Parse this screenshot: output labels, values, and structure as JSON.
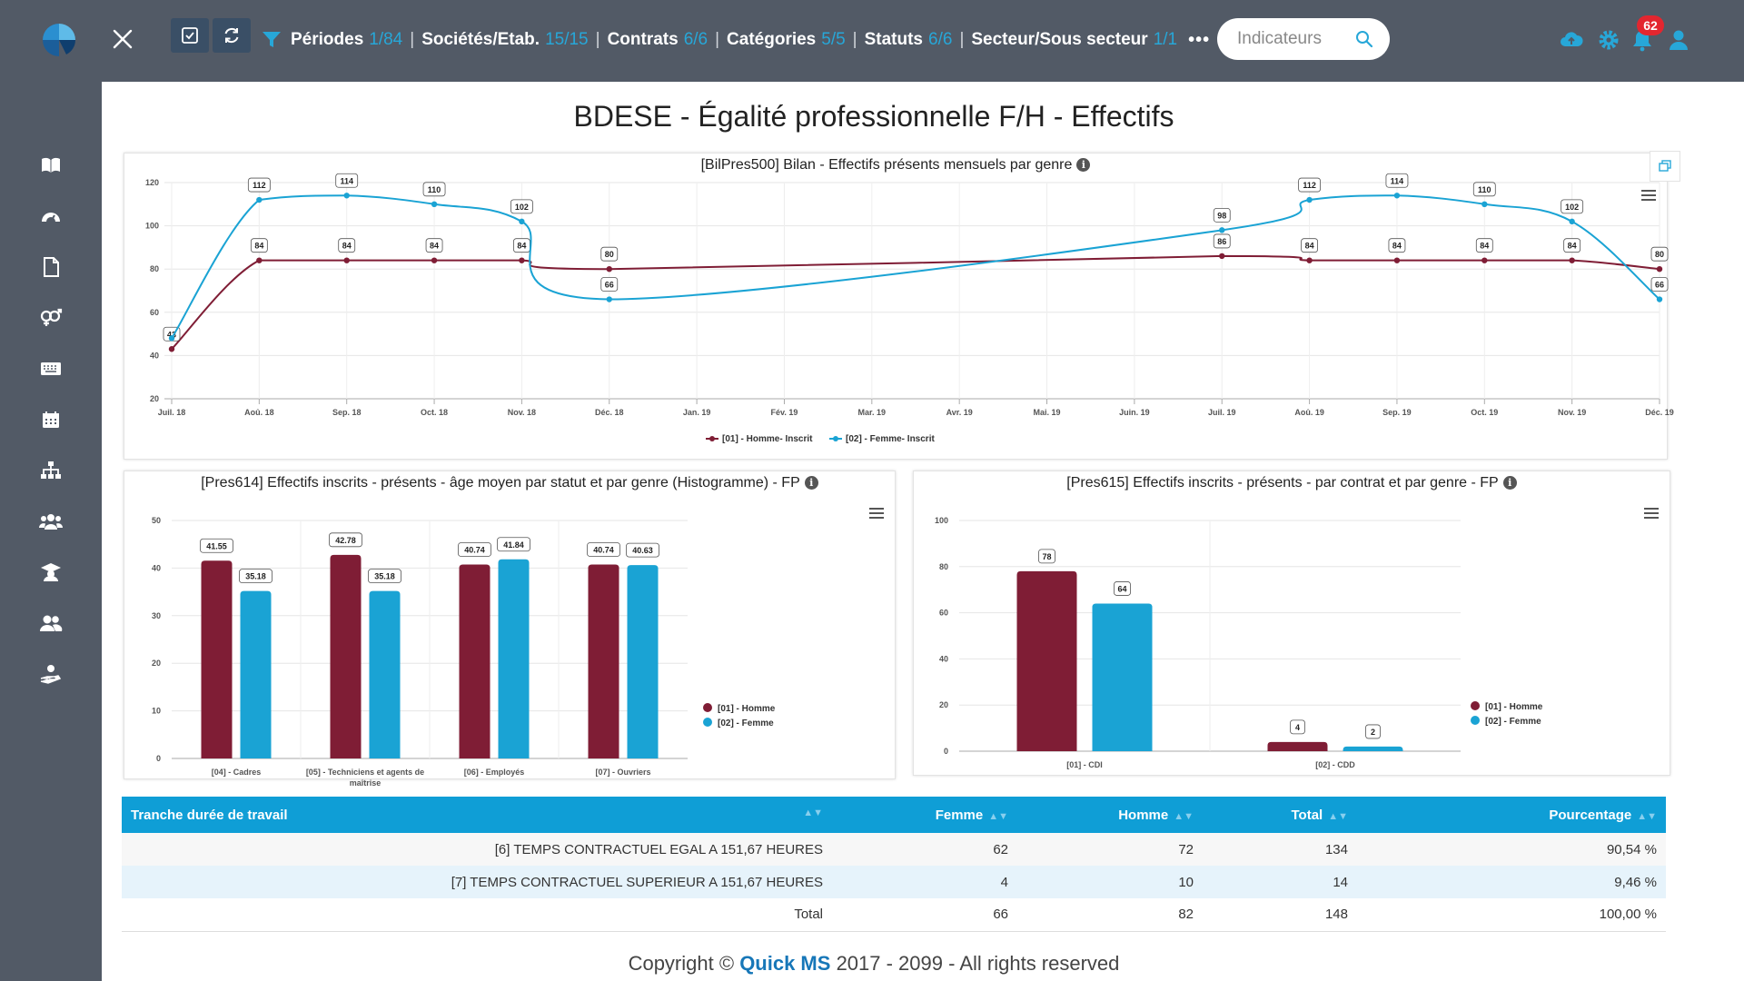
{
  "header": {
    "filters": [
      {
        "label": "Périodes",
        "count": "1/84"
      },
      {
        "label": "Sociétés/Etab.",
        "count": "15/15"
      },
      {
        "label": "Contrats",
        "count": "6/6"
      },
      {
        "label": "Catégories",
        "count": "5/5"
      },
      {
        "label": "Statuts",
        "count": "6/6"
      },
      {
        "label": "Secteur/Sous secteur",
        "count": "1/1"
      }
    ],
    "more_label": "•••",
    "search_placeholder": "Indicateurs",
    "notification_count": "62",
    "icons": {
      "logo": "quickms-logo-icon",
      "close": "close-icon",
      "check": "check-square-icon",
      "refresh": "refresh-icon",
      "filter": "filter-icon",
      "search": "search-icon",
      "cloud": "cloud-upload-icon",
      "settings": "gear-icon",
      "bell": "bell-icon",
      "user": "user-icon"
    },
    "colors": {
      "bar": "#525a66",
      "accent": "#27a7d8",
      "badge": "#e3262f"
    }
  },
  "sidebar": {
    "items": [
      {
        "icon": "book-icon"
      },
      {
        "icon": "dashboard-gauge-icon"
      },
      {
        "icon": "document-icon"
      },
      {
        "icon": "gender-icon"
      },
      {
        "icon": "keyboard-icon"
      },
      {
        "icon": "calendar-icon"
      },
      {
        "icon": "org-chart-icon"
      },
      {
        "icon": "users-group-icon"
      },
      {
        "icon": "graduate-icon"
      },
      {
        "icon": "team-icon"
      },
      {
        "icon": "hand-user-icon"
      }
    ]
  },
  "page": {
    "title": "BDESE - Égalité professionnelle F/H - Effectifs"
  },
  "chart_data": [
    {
      "type": "line",
      "title": "[BilPres500] Bilan - Effectifs présents mensuels par genre",
      "categories": [
        "Juil. 18",
        "Aoû. 18",
        "Sep. 18",
        "Oct. 18",
        "Nov. 18",
        "Déc. 18",
        "Jan. 19",
        "Fév. 19",
        "Mar. 19",
        "Avr. 19",
        "Mai. 19",
        "Juin. 19",
        "Juil. 19",
        "Aoû. 19",
        "Sep. 19",
        "Oct. 19",
        "Nov. 19",
        "Déc. 19"
      ],
      "series": [
        {
          "name": "[01] - Homme- Inscrit",
          "color": "#7f1d35",
          "values": [
            43,
            84,
            84,
            84,
            84,
            80,
            null,
            null,
            null,
            null,
            null,
            null,
            86,
            84,
            84,
            84,
            84,
            80
          ]
        },
        {
          "name": "[02] - Femme- Inscrit",
          "color": "#1aa3d4",
          "values": [
            48,
            112,
            114,
            110,
            102,
            66,
            null,
            null,
            null,
            null,
            null,
            null,
            98,
            112,
            114,
            110,
            102,
            66
          ]
        }
      ],
      "data_labels": {
        "homme": [
          "43",
          "84",
          "84",
          "84",
          "84",
          "80",
          "",
          "",
          "",
          "",
          "",
          "",
          "86",
          "84",
          "84",
          "84",
          "84",
          "80"
        ],
        "femme": [
          "",
          "112",
          "114",
          "110",
          "102",
          "66",
          "",
          "",
          "",
          "",
          "",
          "",
          "98",
          "112",
          "114",
          "110",
          "102",
          "66"
        ]
      },
      "ylim": [
        20,
        120
      ],
      "yticks": [
        "20",
        "40",
        "60",
        "80",
        "100",
        "120"
      ],
      "grid": true,
      "legend": "bottom"
    },
    {
      "type": "bar",
      "title": "[Pres614] Effectifs inscrits - présents - âge moyen par statut et par genre (Histogramme) - FP",
      "categories": [
        "[04] - Cadres",
        "[05] - Techniciens et agents de maîtrise",
        "[06] - Employés",
        "[07] - Ouvriers"
      ],
      "series": [
        {
          "name": "[01] - Homme",
          "color": "#7f1d35",
          "values": [
            41.55,
            42.78,
            40.74,
            40.74
          ]
        },
        {
          "name": "[02] - Femme",
          "color": "#1aa3d4",
          "values": [
            35.18,
            35.18,
            41.84,
            40.63
          ]
        }
      ],
      "value_labels": {
        "homme": [
          "41.55",
          "42.78",
          "40.74",
          "40.74"
        ],
        "femme": [
          "35.18",
          "35.18",
          "41.84",
          "40.63"
        ]
      },
      "ylim": [
        0,
        50
      ],
      "yticks": [
        "0",
        "10",
        "20",
        "30",
        "40",
        "50"
      ],
      "legend": "right"
    },
    {
      "type": "bar",
      "title": "[Pres615] Effectifs inscrits - présents - par contrat et par genre - FP",
      "categories": [
        "[01] - CDI",
        "[02] - CDD"
      ],
      "series": [
        {
          "name": "[01] - Homme",
          "color": "#7f1d35",
          "values": [
            78,
            4
          ]
        },
        {
          "name": "[02] - Femme",
          "color": "#1aa3d4",
          "values": [
            64,
            2
          ]
        }
      ],
      "value_labels": {
        "homme": [
          "78",
          "4"
        ],
        "femme": [
          "64",
          "2"
        ]
      },
      "ylim": [
        0,
        100
      ],
      "yticks": [
        "0",
        "20",
        "40",
        "60",
        "80",
        "100"
      ],
      "legend": "right"
    }
  ],
  "table": {
    "headers": [
      "Tranche durée de travail",
      "Femme",
      "Homme",
      "Total",
      "Pourcentage"
    ],
    "rows": [
      [
        "[6] TEMPS CONTRACTUEL EGAL A 151,67 HEURES",
        "62",
        "72",
        "134",
        "90,54 %"
      ],
      [
        "[7] TEMPS CONTRACTUEL SUPERIEUR A 151,67 HEURES",
        "4",
        "10",
        "14",
        "9,46 %"
      ],
      [
        "Total",
        "66",
        "82",
        "148",
        "100,00 %"
      ]
    ]
  },
  "footer": {
    "copyright_prefix": "Copyright ©",
    "brand": "Quick MS",
    "copyright_suffix": "2017 - 2099 - All rights reserved"
  }
}
